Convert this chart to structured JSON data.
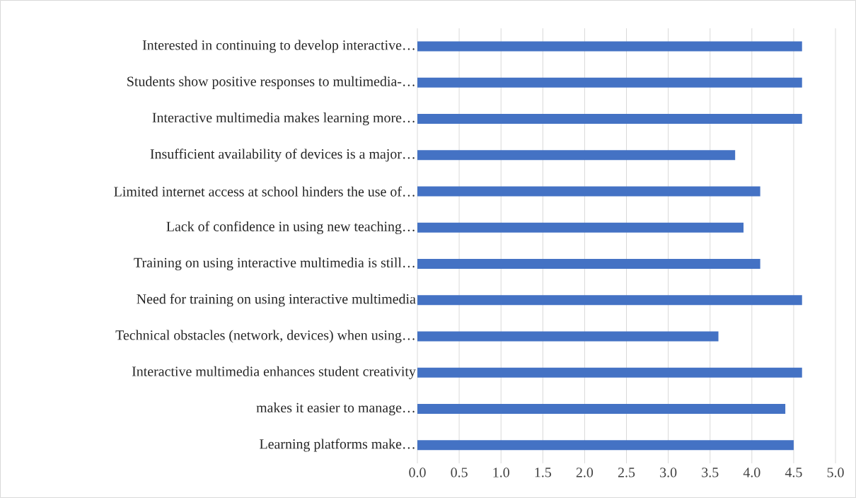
{
  "chart_data": {
    "type": "bar",
    "orientation": "horizontal",
    "categories": [
      "Interested in continuing to develop interactive…",
      "Students show positive responses to multimedia-…",
      "Interactive multimedia makes learning more…",
      "Insufficient availability of devices is a major…",
      "Limited internet access at school hinders the use of…",
      "Lack of confidence in using new teaching…",
      "Training on using interactive multimedia is still…",
      "Need for training on using interactive multimedia",
      "Technical obstacles (network, devices) when using…",
      "Interactive multimedia enhances student creativity",
      "makes it easier to manage…",
      "Learning platforms make…"
    ],
    "values": [
      4.6,
      4.6,
      4.6,
      3.8,
      4.1,
      3.9,
      4.1,
      4.6,
      3.6,
      4.6,
      4.4,
      4.5
    ],
    "color": "#4472c4",
    "xlim": [
      0,
      5
    ],
    "xticks": [
      {
        "value": 0,
        "label": "0.0"
      },
      {
        "value": 0.5,
        "label": "0.5"
      },
      {
        "value": 1,
        "label": "1.0"
      },
      {
        "value": 1.5,
        "label": "1.5"
      },
      {
        "value": 2,
        "label": "2.0"
      },
      {
        "value": 2.5,
        "label": "2.5"
      },
      {
        "value": 3,
        "label": "3.0"
      },
      {
        "value": 3.5,
        "label": "3.5"
      },
      {
        "value": 4,
        "label": "4.0"
      },
      {
        "value": 4.5,
        "label": "4.5"
      },
      {
        "value": 5,
        "label": "5.0"
      }
    ],
    "grid": "x"
  }
}
